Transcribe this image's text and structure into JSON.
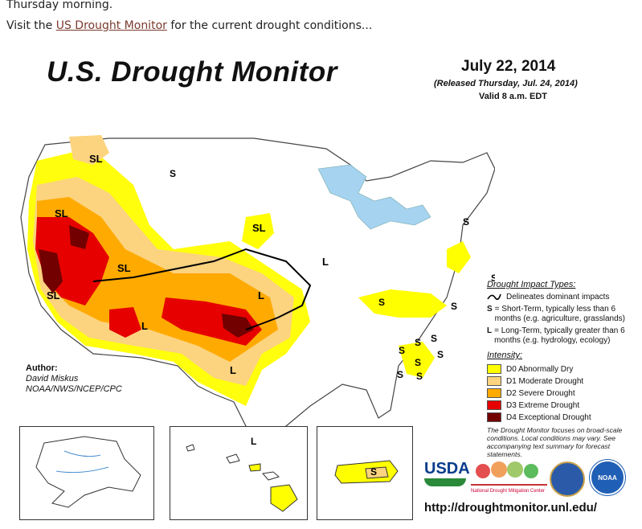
{
  "intro": {
    "line1": "Thursday morning.",
    "line2_prefix": "Visit the ",
    "line2_link": "US Drought Monitor",
    "line2_suffix": " for the current drought conditions..."
  },
  "map": {
    "title": "U.S. Drought Monitor",
    "date": "July 22, 2014",
    "released": "(Released Thursday, Jul. 24, 2014)",
    "valid": "Valid 8 a.m. EDT",
    "region_labels": [
      "SL",
      "SL",
      "SL",
      "SL",
      "SL",
      "L",
      "L",
      "L",
      "L",
      "S",
      "S",
      "S",
      "S",
      "S",
      "S",
      "S",
      "S",
      "S",
      "S",
      "S",
      "S",
      "L",
      "S",
      "SL"
    ],
    "colors": {
      "d0": "#ffff00",
      "d1": "#fcd37f",
      "d2": "#ffaa00",
      "d3": "#e60000",
      "d4": "#730000",
      "water": "#a5d3f0",
      "border": "#555555"
    }
  },
  "legend": {
    "impact_header": "Drought Impact Types:",
    "delineates": "Delineates dominant impacts",
    "short_label": "S",
    "short_text": "= Short-Term, typically less than 6 months (e.g. agriculture, grasslands)",
    "long_label": "L",
    "long_text": "= Long-Term, typically greater than 6 months (e.g. hydrology, ecology)",
    "intensity_header": "Intensity:",
    "levels": [
      {
        "label": "D0 Abnormally Dry",
        "color": "#ffff00"
      },
      {
        "label": "D1 Moderate Drought",
        "color": "#fcd37f"
      },
      {
        "label": "D2 Severe Drought",
        "color": "#ffaa00"
      },
      {
        "label": "D3 Extreme Drought",
        "color": "#e60000"
      },
      {
        "label": "D4 Exceptional Drought",
        "color": "#730000"
      }
    ]
  },
  "note": "The Drought Monitor focuses on broad-scale conditions. Local conditions may vary. See accompanying text summary for forecast statements.",
  "author": {
    "label": "Author:",
    "name": "David Miskus",
    "org": "NOAA/NWS/NCEP/CPC"
  },
  "insets": {
    "hawaii_label": "L",
    "pr_label": "S"
  },
  "logos": {
    "usda": "USDA",
    "ndmc": "National Drought Mitigation Center",
    "doc_icon": "commerce-seal-icon",
    "noaa": "NOAA"
  },
  "url": "http://droughtmonitor.unl.edu/"
}
